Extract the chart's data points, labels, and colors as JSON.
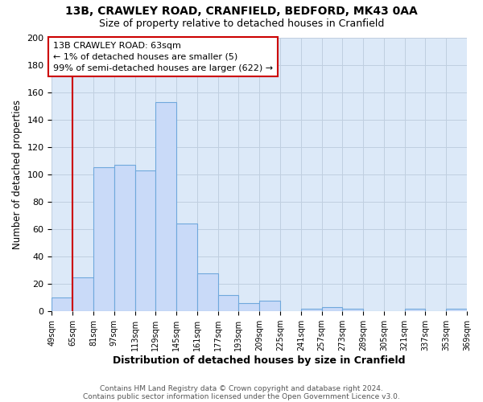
{
  "title1": "13B, CRAWLEY ROAD, CRANFIELD, BEDFORD, MK43 0AA",
  "title2": "Size of property relative to detached houses in Cranfield",
  "xlabel": "Distribution of detached houses by size in Cranfield",
  "ylabel": "Number of detached properties",
  "bin_labels": [
    "49sqm",
    "65sqm",
    "81sqm",
    "97sqm",
    "113sqm",
    "129sqm",
    "145sqm",
    "161sqm",
    "177sqm",
    "193sqm",
    "209sqm",
    "225sqm",
    "241sqm",
    "257sqm",
    "273sqm",
    "289sqm",
    "305sqm",
    "321sqm",
    "337sqm",
    "353sqm",
    "369sqm"
  ],
  "bin_values": [
    10,
    25,
    105,
    107,
    103,
    153,
    64,
    28,
    12,
    6,
    8,
    0,
    2,
    3,
    2,
    0,
    0,
    2,
    0,
    2
  ],
  "bar_color": "#c9daf8",
  "bar_edge_color": "#6fa8dc",
  "grid_color": "#c0cfe0",
  "background_color": "#dce9f8",
  "vline_color": "#cc0000",
  "ylim": [
    0,
    200
  ],
  "yticks": [
    0,
    20,
    40,
    60,
    80,
    100,
    120,
    140,
    160,
    180,
    200
  ],
  "annotation_title": "13B CRAWLEY ROAD: 63sqm",
  "annotation_line1": "← 1% of detached houses are smaller (5)",
  "annotation_line2": "99% of semi-detached houses are larger (622) →",
  "footer1": "Contains HM Land Registry data © Crown copyright and database right 2024.",
  "footer2": "Contains public sector information licensed under the Open Government Licence v3.0."
}
